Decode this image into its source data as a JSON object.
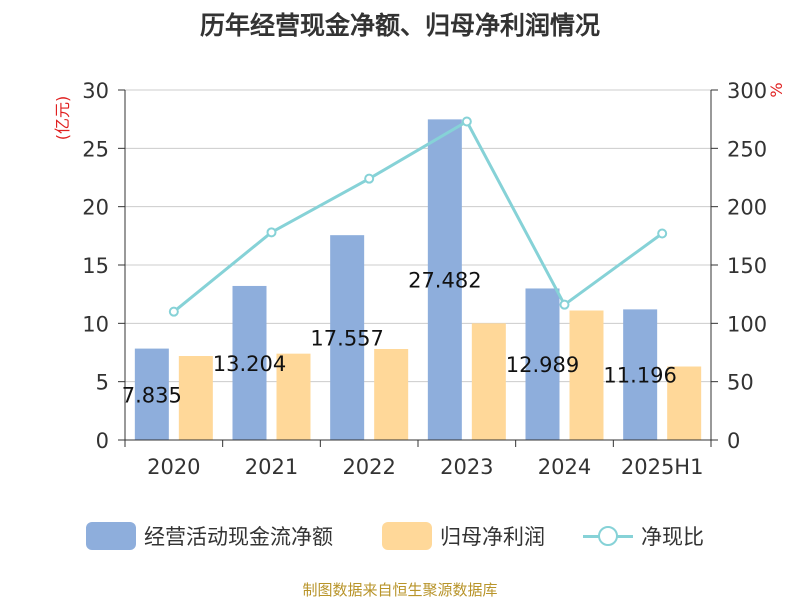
{
  "title": "历年经营现金净额、归母净利润情况",
  "source_note": "制图数据来自恒生聚源数据库",
  "chart_data": {
    "type": "bar",
    "title": "历年经营现金净额、归母净利润情况",
    "categories": [
      "2020",
      "2021",
      "2022",
      "2023",
      "2024",
      "2025H1"
    ],
    "left_axis": {
      "label": "(亿元)",
      "min": 0,
      "max": 30,
      "ticks": [
        0,
        5,
        10,
        15,
        20,
        25,
        30
      ]
    },
    "right_axis": {
      "label": "%",
      "min": 0,
      "max": 300,
      "ticks": [
        0,
        50,
        100,
        150,
        200,
        250,
        300
      ]
    },
    "grid": true,
    "legend_position": "bottom",
    "series": [
      {
        "name": "经营活动现金流净额",
        "type": "bar",
        "axis": "left",
        "color": "#8eaedc",
        "values": [
          7.835,
          13.204,
          17.557,
          27.482,
          12.989,
          11.196
        ],
        "labels": [
          "7.835",
          "13.204",
          "17.557",
          "27.482",
          "12.989",
          "11.196"
        ]
      },
      {
        "name": "归母净利润",
        "type": "bar",
        "axis": "left",
        "color": "#ffd899",
        "values": [
          7.2,
          7.4,
          7.8,
          10.0,
          11.1,
          6.3
        ]
      },
      {
        "name": "净现比",
        "type": "line",
        "axis": "right",
        "color": "#86d2d7",
        "values": [
          110,
          178,
          224,
          273,
          116,
          177
        ]
      }
    ]
  }
}
